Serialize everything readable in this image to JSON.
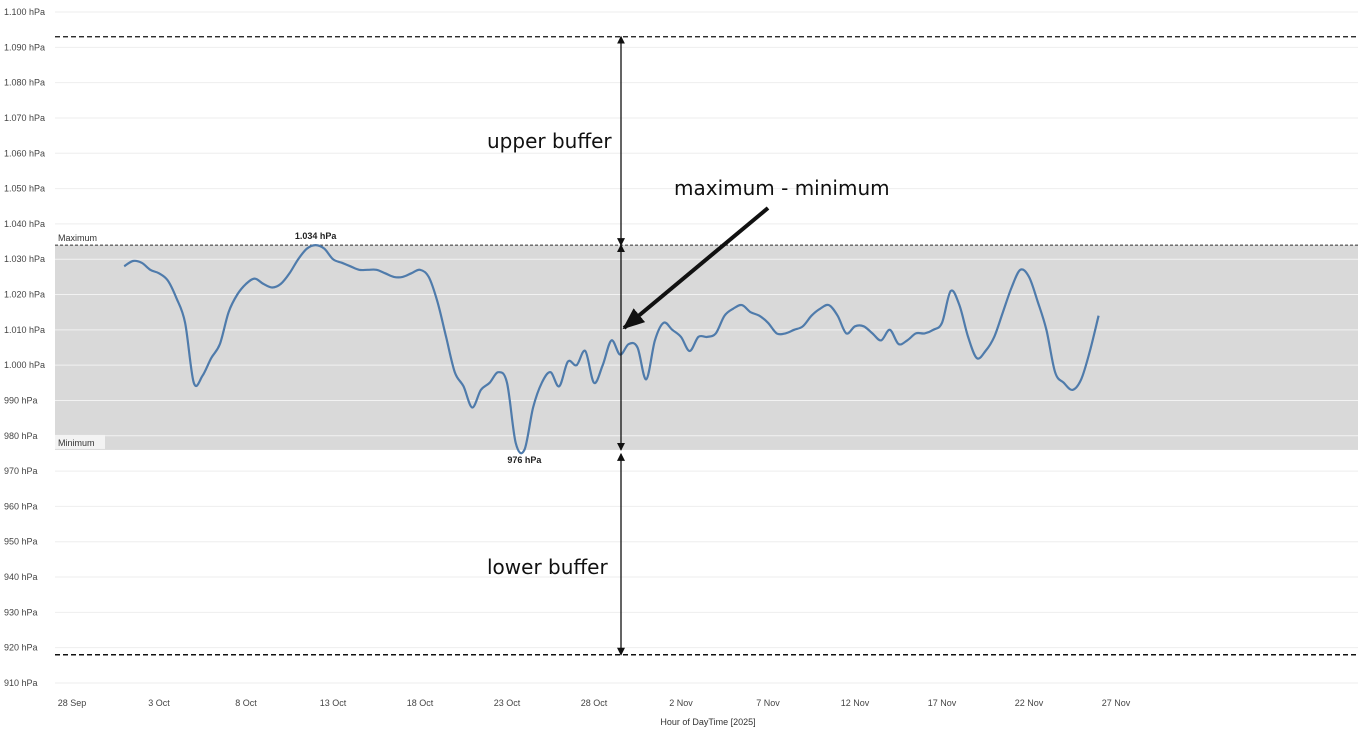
{
  "chart_data": {
    "type": "line",
    "xlabel": "Hour of DayTime [2025]",
    "ylabel": "",
    "ylim": [
      910,
      1100
    ],
    "y_ticks": [
      910,
      920,
      930,
      940,
      950,
      960,
      970,
      980,
      990,
      1000,
      1010,
      1020,
      1030,
      1040,
      1050,
      1060,
      1070,
      1080,
      1090,
      1100
    ],
    "y_tick_labels": [
      "910 hPa",
      "920 hPa",
      "930 hPa",
      "940 hPa",
      "950 hPa",
      "960 hPa",
      "970 hPa",
      "980 hPa",
      "990 hPa",
      "1.000 hPa",
      "1.010 hPa",
      "1.020 hPa",
      "1.030 hPa",
      "1.040 hPa",
      "1.050 hPa",
      "1.060 hPa",
      "1.070 hPa",
      "1.080 hPa",
      "1.090 hPa",
      "1.100 hPa"
    ],
    "x_ticks": [
      {
        "date": "2025-09-28",
        "label": "28 Sep"
      },
      {
        "date": "2025-10-03",
        "label": "3 Oct"
      },
      {
        "date": "2025-10-08",
        "label": "8 Oct"
      },
      {
        "date": "2025-10-13",
        "label": "13 Oct"
      },
      {
        "date": "2025-10-18",
        "label": "18 Oct"
      },
      {
        "date": "2025-10-23",
        "label": "23 Oct"
      },
      {
        "date": "2025-10-28",
        "label": "28 Oct"
      },
      {
        "date": "2025-11-02",
        "label": "2 Nov"
      },
      {
        "date": "2025-11-07",
        "label": "7 Nov"
      },
      {
        "date": "2025-11-12",
        "label": "12 Nov"
      },
      {
        "date": "2025-11-17",
        "label": "17 Nov"
      },
      {
        "date": "2025-11-22",
        "label": "22 Nov"
      },
      {
        "date": "2025-11-27",
        "label": "27 Nov"
      }
    ],
    "xlim": [
      "2025-09-28",
      "2025-11-29"
    ],
    "grid": true,
    "band": {
      "min": 976,
      "max": 1034,
      "min_label": "Minimum",
      "max_label": "Maximum"
    },
    "extreme_labels": {
      "max_text": "1.034 hPa",
      "min_text": "976 hPa"
    },
    "buffer_lines": {
      "upper": 1093,
      "lower": 918
    },
    "annotations": {
      "upper": "upper buffer",
      "range": "maximum - minimum",
      "lower": "lower buffer"
    },
    "series": [
      {
        "color": "#4f7bab",
        "points": [
          [
            "2025-10-01",
            1028
          ],
          [
            "2025-10-01T12",
            1029.5
          ],
          [
            "2025-10-02",
            1029
          ],
          [
            "2025-10-02T12",
            1027
          ],
          [
            "2025-10-03",
            1026
          ],
          [
            "2025-10-03T12",
            1024
          ],
          [
            "2025-10-04",
            1019
          ],
          [
            "2025-10-04T12",
            1012
          ],
          [
            "2025-10-05",
            995
          ],
          [
            "2025-10-05T12",
            997
          ],
          [
            "2025-10-06",
            1002
          ],
          [
            "2025-10-06T12",
            1006
          ],
          [
            "2025-10-07",
            1015
          ],
          [
            "2025-10-07T12",
            1020
          ],
          [
            "2025-10-08",
            1023
          ],
          [
            "2025-10-08T12",
            1024.5
          ],
          [
            "2025-10-09",
            1023
          ],
          [
            "2025-10-09T12",
            1022
          ],
          [
            "2025-10-10",
            1023
          ],
          [
            "2025-10-10T12",
            1026
          ],
          [
            "2025-10-11",
            1030
          ],
          [
            "2025-10-11T12",
            1033
          ],
          [
            "2025-10-12",
            1034
          ],
          [
            "2025-10-12T12",
            1033
          ],
          [
            "2025-10-13",
            1030
          ],
          [
            "2025-10-13T12",
            1029
          ],
          [
            "2025-10-14",
            1028
          ],
          [
            "2025-10-14T12",
            1027
          ],
          [
            "2025-10-15",
            1027
          ],
          [
            "2025-10-15T12",
            1027
          ],
          [
            "2025-10-16",
            1026
          ],
          [
            "2025-10-16T12",
            1025
          ],
          [
            "2025-10-17",
            1025
          ],
          [
            "2025-10-17T12",
            1026
          ],
          [
            "2025-10-18",
            1027
          ],
          [
            "2025-10-18T12",
            1025
          ],
          [
            "2025-10-19",
            1018
          ],
          [
            "2025-10-19T12",
            1008
          ],
          [
            "2025-10-20",
            998
          ],
          [
            "2025-10-20T12",
            994
          ],
          [
            "2025-10-21",
            988
          ],
          [
            "2025-10-21T12",
            993
          ],
          [
            "2025-10-22",
            995
          ],
          [
            "2025-10-22T12",
            998
          ],
          [
            "2025-10-23",
            995
          ],
          [
            "2025-10-23T12",
            978
          ],
          [
            "2025-10-24",
            976
          ],
          [
            "2025-10-24T12",
            988
          ],
          [
            "2025-10-25",
            995
          ],
          [
            "2025-10-25T12",
            998
          ],
          [
            "2025-10-26",
            994
          ],
          [
            "2025-10-26T12",
            1001
          ],
          [
            "2025-10-27",
            1000
          ],
          [
            "2025-10-27T12",
            1004
          ],
          [
            "2025-10-28",
            995
          ],
          [
            "2025-10-28T12",
            1000
          ],
          [
            "2025-10-29",
            1007
          ],
          [
            "2025-10-29T12",
            1003
          ],
          [
            "2025-10-30",
            1006
          ],
          [
            "2025-10-30T12",
            1005
          ],
          [
            "2025-10-31",
            996
          ],
          [
            "2025-10-31T12",
            1007
          ],
          [
            "2025-11-01",
            1012
          ],
          [
            "2025-11-01T12",
            1010
          ],
          [
            "2025-11-02",
            1008
          ],
          [
            "2025-11-02T12",
            1004
          ],
          [
            "2025-11-03",
            1008
          ],
          [
            "2025-11-03T12",
            1008
          ],
          [
            "2025-11-04",
            1009
          ],
          [
            "2025-11-04T12",
            1014
          ],
          [
            "2025-11-05",
            1016
          ],
          [
            "2025-11-05T12",
            1017
          ],
          [
            "2025-11-06",
            1015
          ],
          [
            "2025-11-06T12",
            1014
          ],
          [
            "2025-11-07",
            1012
          ],
          [
            "2025-11-07T12",
            1009
          ],
          [
            "2025-11-08",
            1009
          ],
          [
            "2025-11-08T12",
            1010
          ],
          [
            "2025-11-09",
            1011
          ],
          [
            "2025-11-09T12",
            1014
          ],
          [
            "2025-11-10",
            1016
          ],
          [
            "2025-11-10T12",
            1017
          ],
          [
            "2025-11-11",
            1014
          ],
          [
            "2025-11-11T12",
            1009
          ],
          [
            "2025-11-12",
            1011
          ],
          [
            "2025-11-12T12",
            1011
          ],
          [
            "2025-11-13",
            1009
          ],
          [
            "2025-11-13T12",
            1007
          ],
          [
            "2025-11-14",
            1010
          ],
          [
            "2025-11-14T12",
            1006
          ],
          [
            "2025-11-15",
            1007
          ],
          [
            "2025-11-15T12",
            1009
          ],
          [
            "2025-11-16",
            1009
          ],
          [
            "2025-11-16T12",
            1010
          ],
          [
            "2025-11-17",
            1012
          ],
          [
            "2025-11-17T12",
            1021
          ],
          [
            "2025-11-18",
            1017
          ],
          [
            "2025-11-18T12",
            1008
          ],
          [
            "2025-11-19",
            1002
          ],
          [
            "2025-11-19T12",
            1004
          ],
          [
            "2025-11-20",
            1008
          ],
          [
            "2025-11-20T12",
            1015
          ],
          [
            "2025-11-21",
            1022
          ],
          [
            "2025-11-21T12",
            1027
          ],
          [
            "2025-11-22",
            1025
          ],
          [
            "2025-11-22T12",
            1018
          ],
          [
            "2025-11-23",
            1010
          ],
          [
            "2025-11-23T12",
            998
          ],
          [
            "2025-11-24",
            995
          ],
          [
            "2025-11-24T12",
            993
          ],
          [
            "2025-11-25",
            996
          ],
          [
            "2025-11-25T12",
            1004
          ],
          [
            "2025-11-26",
            1014
          ]
        ]
      }
    ]
  }
}
